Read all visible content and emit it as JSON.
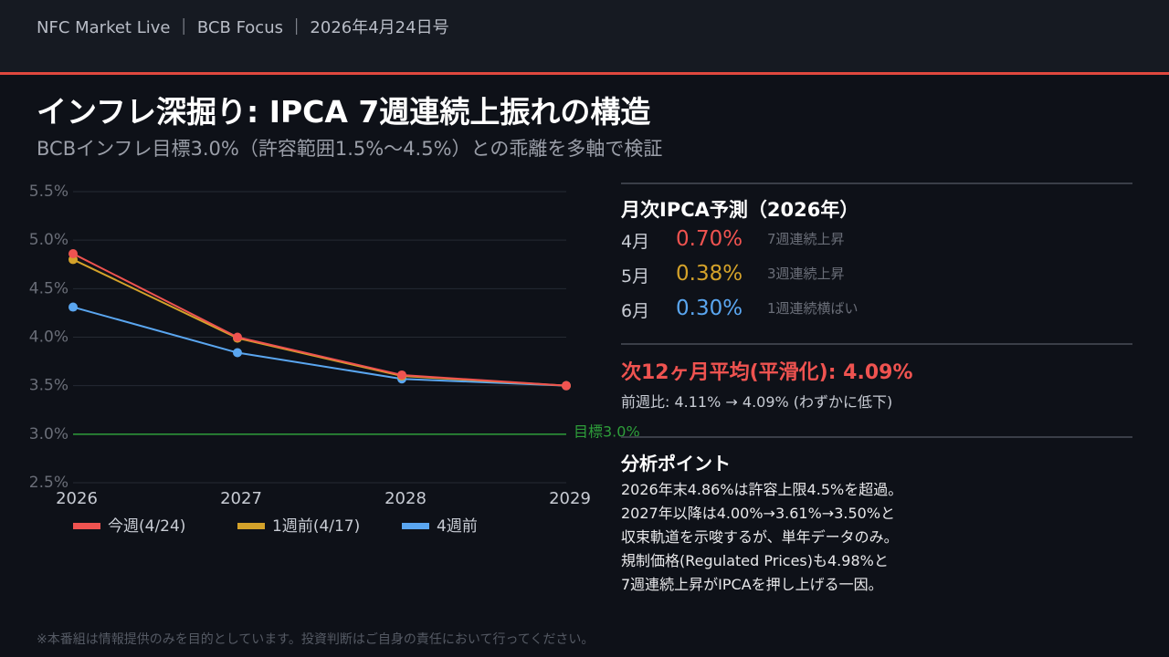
{
  "header": {
    "text": "NFC Market Live ｜ BCB Focus ｜ 2026年4月24日号"
  },
  "title": "インフレ深掘り: IPCA 7週連続上振れの構造",
  "subtitle": "BCBインフレ目標3.0%（許容範囲1.5%〜4.5%）との乖離を多軸で検証",
  "chart_data": {
    "type": "line",
    "categories": [
      "2026",
      "2027",
      "2028",
      "2029"
    ],
    "series": [
      {
        "name": "今週(4/24)",
        "color": "#ef5350",
        "values": [
          4.86,
          4.0,
          3.61,
          3.5
        ]
      },
      {
        "name": "1週前(4/17)",
        "color": "#d4a22a",
        "values": [
          4.8,
          3.99,
          3.6,
          3.5
        ]
      },
      {
        "name": "4週前",
        "color": "#5aa6f0",
        "values": [
          4.31,
          3.84,
          3.57,
          3.5
        ]
      }
    ],
    "ylim": [
      2.5,
      5.5
    ],
    "yticks": [
      {
        "value": 2.5,
        "label": "2.5%"
      },
      {
        "value": 3.0,
        "label": "3.0%"
      },
      {
        "value": 3.5,
        "label": "3.5%"
      },
      {
        "value": 4.0,
        "label": "4.0%"
      },
      {
        "value": 4.5,
        "label": "4.5%"
      },
      {
        "value": 5.0,
        "label": "5.0%"
      },
      {
        "value": 5.5,
        "label": "5.5%"
      }
    ],
    "grid": true,
    "target": {
      "value": 3.0,
      "label": "目標3.0%",
      "color": "#2e9e3a"
    }
  },
  "panel": {
    "monthly_title": "月次IPCA予測（2026年）",
    "monthly": [
      {
        "month": "4月",
        "value": "0.70%",
        "note": "7週連続上昇",
        "color": "#ef5350"
      },
      {
        "month": "5月",
        "value": "0.38%",
        "note": "3週連続上昇",
        "color": "#d4a22a"
      },
      {
        "month": "6月",
        "value": "0.30%",
        "note": "1週連続横ばい",
        "color": "#5aa6f0"
      }
    ],
    "average": "次12ヶ月平均(平滑化): 4.09%",
    "average_change": "前週比: 4.11% → 4.09% (わずかに低下)",
    "analysis_title": "分析ポイント",
    "analysis": [
      "2026年末4.86%は許容上限4.5%を超過。",
      "2027年以降は4.00%→3.61%→3.50%と",
      "収束軌道を示唆するが、単年データのみ。",
      "規制価格(Regulated Prices)も4.98%と",
      "7週連続上昇がIPCAを押し上げる一因。"
    ]
  },
  "footer": "※本番組は情報提供のみを目的としています。投資判断はご自身の責任において行ってください。"
}
